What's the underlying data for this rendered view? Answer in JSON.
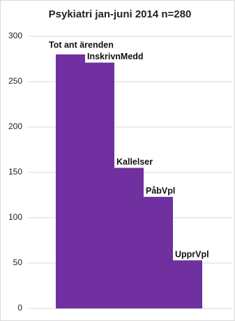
{
  "chart_data": {
    "type": "bar",
    "title": "Psykiatri jan-juni 2014 n=280",
    "categories": [
      "Tot ant ärenden",
      "InskrivnMedd",
      "Kallelser",
      "PåbVpl",
      "UpprVpl"
    ],
    "values": [
      280,
      271,
      155,
      123,
      53
    ],
    "color": "#7030a0",
    "ylim": [
      0,
      300
    ],
    "yticks": [
      0,
      50,
      100,
      150,
      200,
      250,
      300
    ],
    "grid": true
  }
}
